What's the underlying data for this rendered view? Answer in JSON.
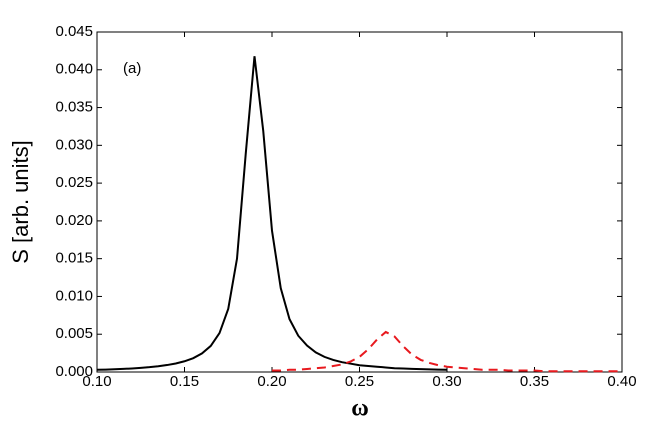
{
  "chart_data": {
    "type": "line",
    "annotation": "(a)",
    "x_label": "ω",
    "y_label": "S [arb. units]",
    "x": [
      0.1,
      0.105,
      0.11,
      0.115,
      0.12,
      0.125,
      0.13,
      0.135,
      0.14,
      0.145,
      0.15,
      0.155,
      0.16,
      0.165,
      0.17,
      0.175,
      0.18,
      0.185,
      0.19,
      0.195,
      0.2,
      0.205,
      0.21,
      0.215,
      0.22,
      0.225,
      0.23,
      0.235,
      0.24,
      0.245,
      0.25,
      0.255,
      0.26,
      0.265,
      0.27,
      0.275,
      0.28,
      0.285,
      0.29,
      0.295,
      0.3,
      0.305,
      0.31,
      0.315,
      0.32,
      0.325,
      0.33,
      0.335,
      0.34,
      0.345,
      0.35,
      0.355,
      0.36,
      0.365,
      0.37,
      0.375,
      0.38,
      0.385,
      0.39,
      0.395,
      0.4
    ],
    "series": [
      {
        "color": "#000000",
        "dash": "solid",
        "values": [
          0.00029,
          0.00032,
          0.00036,
          0.00041,
          0.00047,
          0.00055,
          0.00064,
          0.00076,
          0.00092,
          0.00113,
          0.00142,
          0.00183,
          0.00246,
          0.00345,
          0.00515,
          0.00836,
          0.015,
          0.0289,
          0.0418,
          0.0319,
          0.0187,
          0.0111,
          0.007,
          0.0048,
          0.0035,
          0.0026,
          0.002,
          0.0016,
          0.0013,
          0.0011,
          0.0009,
          0.0008,
          0.0007,
          0.0006,
          0.0005,
          0.00047,
          0.00042,
          0.00038,
          0.00035,
          0.00032,
          0.0003,
          null,
          null,
          null,
          null,
          null,
          null,
          null,
          null,
          null,
          null,
          null,
          null,
          null,
          null,
          null,
          null,
          null,
          null,
          null,
          null
        ]
      },
      {
        "color": "#e8191e",
        "dash": "dashed",
        "values": [
          null,
          null,
          null,
          null,
          null,
          null,
          null,
          null,
          null,
          null,
          null,
          null,
          null,
          null,
          null,
          null,
          null,
          null,
          null,
          null,
          0.0002,
          0.0002,
          0.0003,
          0.0003,
          0.0004,
          0.0005,
          0.0006,
          0.0008,
          0.001,
          0.0014,
          0.002,
          0.003,
          0.0043,
          0.0053,
          0.0047,
          0.0034,
          0.0023,
          0.0016,
          0.0012,
          0.0009,
          0.0007,
          0.0006,
          0.0005,
          0.0004,
          0.0003,
          0.0003,
          0.0003,
          0.0002,
          0.0002,
          0.0002,
          0.0002,
          0.0001,
          0.0001,
          0.0001,
          0.0001,
          0.0001,
          0.0001,
          0.0001,
          0.0001,
          0.0001,
          0.0001
        ]
      }
    ],
    "xlim": [
      0.1,
      0.4
    ],
    "xticks": [
      {
        "value": 0.1,
        "label": "0.10"
      },
      0.15,
      {
        "value": 0.2,
        "label": "0.20"
      },
      0.25,
      {
        "value": 0.3,
        "label": "0.30"
      },
      0.35,
      {
        "value": 0.4,
        "label": "0.40"
      }
    ],
    "ylim": [
      0,
      0.045
    ],
    "yticks": [
      {
        "value": 0,
        "label": "0.000"
      },
      0.005,
      {
        "value": 0.01,
        "label": "0.010"
      },
      0.015,
      {
        "value": 0.02,
        "label": "0.020"
      },
      0.025,
      {
        "value": 0.03,
        "label": "0.030"
      },
      0.035,
      {
        "value": 0.04,
        "label": "0.040"
      },
      0.045
    ],
    "grid": false
  }
}
